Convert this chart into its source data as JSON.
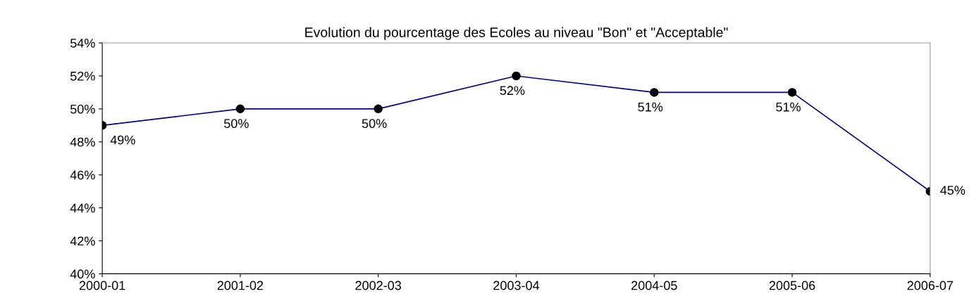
{
  "chart_data": {
    "type": "line",
    "title": "Evolution du pourcentage des Ecoles au niveau \"Bon\" et \"Acceptable\"",
    "categories": [
      "2000-01",
      "2001-02",
      "2002-03",
      "2003-04",
      "2004-05",
      "2005-06",
      "2006-07"
    ],
    "series": [
      {
        "color": "#000080",
        "values": [
          49,
          50,
          50,
          52,
          51,
          51,
          45
        ],
        "value_labels": [
          "49%",
          "50%",
          "50%",
          "52%",
          "51%",
          "51%",
          "45%"
        ]
      }
    ],
    "ylim": [
      40,
      54
    ],
    "yticks": [
      {
        "value": 40,
        "label": "40%"
      },
      {
        "value": 42,
        "label": "42%"
      },
      {
        "value": 44,
        "label": "44%"
      },
      {
        "value": 46,
        "label": "46%"
      },
      {
        "value": 48,
        "label": "48%"
      },
      {
        "value": 50,
        "label": "50%"
      },
      {
        "value": 52,
        "label": "52%"
      },
      {
        "value": 54,
        "label": "54%"
      }
    ],
    "marker": "circle",
    "grid": false,
    "legend": false
  }
}
